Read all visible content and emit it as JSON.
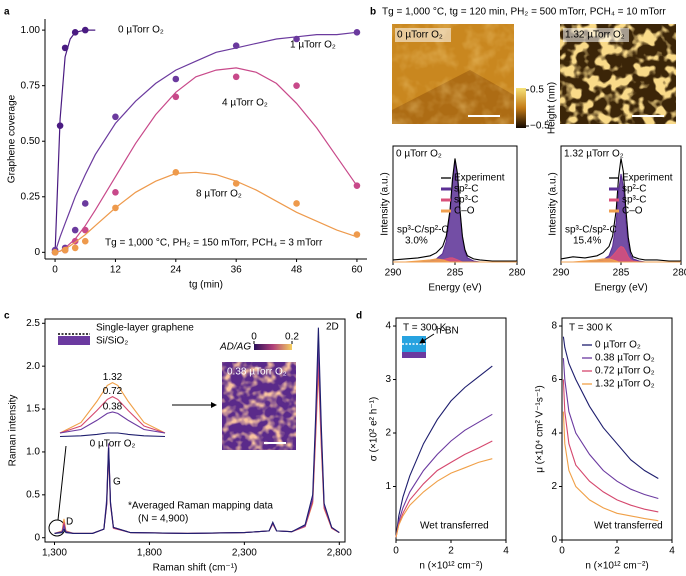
{
  "figure": {
    "panel_labels": [
      "a",
      "b",
      "c",
      "d"
    ],
    "b_conditions": "Tg = 1,000 °C, tg = 120 min, PH₂ = 500 mTorr, PCH₄ = 10 mTorr",
    "afm_labels": [
      "0 µTorr O₂",
      "1.32 µTorr O₂"
    ],
    "afm_colorbar": {
      "label": "Height (nm)",
      "ticks": [
        0.5,
        {
          "value": -0.5,
          "label": "−0.5"
        }
      ]
    },
    "schematic_labels": [
      "Single-layer graphene",
      "Si/SiO₂"
    ],
    "raman_note": [
      "*Averaged Raman mapping data",
      "(N = 4,900)"
    ],
    "raman_map": {
      "label": "0.38 µTorr O₂",
      "colorbar_title": "AD/AG",
      "colorbar_ticks": [
        0,
        0.2
      ]
    }
  },
  "chart_data": [
    {
      "type": "scatter",
      "xlabel": "tg (min)",
      "ylabel": "Graphene coverage",
      "annotation": "Tg = 1,000 °C, PH₂ = 150 mTorr, PCH₄ = 3 mTorr",
      "xlim": [
        -2,
        62
      ],
      "ylim": [
        -0.03,
        1.05
      ],
      "xticks": [
        0,
        12,
        24,
        36,
        48,
        60
      ],
      "yticks": [
        0,
        0.25,
        {
          "value": 0.5,
          "label": "0.50"
        },
        0.75,
        {
          "value": 1,
          "label": "1.00"
        }
      ],
      "fit_x": [
        0,
        1,
        2,
        3,
        4,
        6,
        8,
        12,
        16,
        20,
        24,
        28,
        32,
        36,
        40,
        44,
        48,
        52,
        56,
        60
      ],
      "series": [
        {
          "name": "0 µTorr O₂",
          "color": "#4a1b82",
          "x": [
            0,
            1,
            2,
            4,
            6
          ],
          "values": [
            0,
            0.57,
            0.92,
            0.99,
            1.0
          ],
          "fit": [
            0,
            0.6,
            0.88,
            0.96,
            0.99,
            1.0,
            1.0,
            null,
            null,
            null,
            null,
            null,
            null,
            null,
            null,
            null,
            null,
            null,
            null,
            null
          ]
        },
        {
          "name": "1 µTorr O₂",
          "color": "#6b3a9e",
          "x": [
            0,
            2,
            4,
            6,
            12,
            24,
            36,
            48,
            60
          ],
          "values": [
            0.01,
            0.02,
            0.1,
            0.22,
            0.61,
            0.78,
            0.93,
            0.96,
            0.99
          ],
          "fit": [
            0,
            0.07,
            0.13,
            0.19,
            0.25,
            0.35,
            0.44,
            0.58,
            0.68,
            0.76,
            0.82,
            0.86,
            0.9,
            0.92,
            0.94,
            0.96,
            0.97,
            0.98,
            0.98,
            0.99
          ]
        },
        {
          "name": "4 µTorr O₂",
          "color": "#c8498a",
          "x": [
            0,
            2,
            4,
            6,
            12,
            24,
            36,
            48,
            60
          ],
          "values": [
            0,
            0.01,
            0.05,
            0.1,
            0.27,
            0.7,
            0.79,
            0.75,
            0.3
          ],
          "fit": [
            0,
            0.005,
            0.02,
            0.04,
            0.06,
            0.12,
            0.19,
            0.34,
            0.49,
            0.62,
            0.72,
            0.79,
            0.82,
            0.83,
            0.81,
            0.76,
            0.67,
            0.56,
            0.43,
            0.3
          ]
        },
        {
          "name": "8 µTorr O₂",
          "color": "#ee9a4c",
          "x": [
            0,
            2,
            4,
            6,
            12,
            24,
            36,
            48,
            60
          ],
          "values": [
            0,
            0.01,
            0.02,
            0.05,
            0.2,
            0.36,
            0.31,
            0.22,
            0.08
          ],
          "fit": [
            0,
            0.005,
            0.015,
            0.03,
            0.045,
            0.08,
            0.12,
            0.2,
            0.27,
            0.32,
            0.355,
            0.36,
            0.35,
            0.32,
            0.28,
            0.23,
            0.18,
            0.14,
            0.1,
            0.07
          ]
        }
      ]
    },
    {
      "type": "line",
      "title": "0 µTorr O₂",
      "xlabel": "Energy (eV)",
      "ylabel": "Intensity (a.u.)",
      "annotation": [
        "sp³-C/sp²-C",
        "3.0%"
      ],
      "xlim": [
        290,
        280
      ],
      "ylim": [
        0,
        1.12
      ],
      "xticks": [
        290,
        285,
        280
      ],
      "x": [
        290,
        289,
        288,
        287,
        286.5,
        286,
        285.7,
        285.4,
        285.2,
        285,
        284.8,
        284.6,
        284.4,
        284.2,
        284,
        283.5,
        283,
        282,
        281,
        280
      ],
      "series": [
        {
          "name": "Experiment",
          "color": "#000000",
          "values": [
            0.02,
            0.03,
            0.04,
            0.06,
            0.09,
            0.15,
            0.25,
            0.5,
            0.8,
            1.0,
            0.85,
            0.5,
            0.25,
            0.12,
            0.06,
            0.03,
            0.02,
            0.01,
            0.01,
            0.01
          ]
        },
        {
          "name": "sp²-C",
          "color": "#5b2f95",
          "fill": true,
          "values": [
            0,
            0,
            0,
            0.01,
            0.03,
            0.08,
            0.2,
            0.46,
            0.77,
            0.98,
            0.84,
            0.48,
            0.23,
            0.1,
            0.04,
            0.01,
            0,
            0,
            0,
            0
          ]
        },
        {
          "name": "sp³-C",
          "color": "#d9507a",
          "fill": true,
          "values": [
            0,
            0,
            0,
            0,
            0.01,
            0.02,
            0.03,
            0.04,
            0.04,
            0.03,
            0.02,
            0.01,
            0,
            0,
            0,
            0,
            0,
            0,
            0,
            0
          ]
        },
        {
          "name": "C–O",
          "color": "#f0a050",
          "fill": true,
          "values": [
            0,
            0,
            0.01,
            0.02,
            0.03,
            0.02,
            0.01,
            0,
            0,
            0,
            0,
            0,
            0,
            0,
            0,
            0,
            0,
            0,
            0,
            0
          ]
        }
      ]
    },
    {
      "type": "line",
      "title": "1.32 µTorr O₂",
      "xlabel": "Energy (eV)",
      "ylabel": "Intensity (a.u.)",
      "annotation": [
        "sp³-C/sp²-C",
        "15.4%"
      ],
      "xlim": [
        290,
        280
      ],
      "ylim": [
        0,
        1.12
      ],
      "xticks": [
        290,
        285,
        280
      ],
      "x": [
        290,
        289,
        288,
        287,
        286.5,
        286,
        285.7,
        285.4,
        285.2,
        285,
        284.8,
        284.6,
        284.4,
        284.2,
        284,
        283.5,
        283,
        282,
        281,
        280
      ],
      "series": [
        {
          "name": "Experiment",
          "color": "#000000",
          "values": [
            0.03,
            0.05,
            0.04,
            0.06,
            0.09,
            0.15,
            0.25,
            0.5,
            0.82,
            1.0,
            0.87,
            0.52,
            0.24,
            0.1,
            0.05,
            0.03,
            0.02,
            0.02,
            0.01,
            0.01
          ]
        },
        {
          "name": "sp²-C",
          "color": "#5b2f95",
          "fill": true,
          "values": [
            0,
            0,
            0,
            0.01,
            0.02,
            0.06,
            0.15,
            0.38,
            0.68,
            0.85,
            0.72,
            0.4,
            0.18,
            0.07,
            0.03,
            0.01,
            0,
            0,
            0,
            0
          ]
        },
        {
          "name": "sp³-C",
          "color": "#d9507a",
          "fill": true,
          "values": [
            0,
            0,
            0,
            0,
            0.01,
            0.03,
            0.06,
            0.1,
            0.13,
            0.15,
            0.14,
            0.1,
            0.05,
            0.02,
            0.01,
            0,
            0,
            0,
            0,
            0
          ]
        },
        {
          "name": "C–O",
          "color": "#f0a050",
          "fill": true,
          "values": [
            0,
            0,
            0.01,
            0.02,
            0.03,
            0.03,
            0.02,
            0.01,
            0,
            0,
            0,
            0,
            0,
            0,
            0,
            0,
            0,
            0,
            0,
            0
          ]
        }
      ]
    },
    {
      "type": "line",
      "xlabel": "Raman shift (cm⁻¹)",
      "ylabel": "Raman intensity",
      "peak_labels": [
        "D",
        "G",
        "2D"
      ],
      "xlim": [
        1250,
        2830
      ],
      "ylim": [
        -0.05,
        2.55
      ],
      "xticks": [
        {
          "value": 1300,
          "label": "1,300"
        },
        {
          "value": 1800,
          "label": "1,800"
        },
        {
          "value": 2300,
          "label": "2,300"
        },
        {
          "value": 2800,
          "label": "2,800"
        }
      ],
      "yticks": [
        0,
        0.5,
        {
          "value": 1,
          "label": "1.0"
        },
        1.5,
        {
          "value": 2,
          "label": "2.0"
        },
        2.5
      ],
      "x": [
        1300,
        1340,
        1350,
        1360,
        1400,
        1500,
        1560,
        1575,
        1585,
        1595,
        1610,
        1700,
        2000,
        2300,
        2430,
        2450,
        2470,
        2550,
        2620,
        2660,
        2675,
        2690,
        2705,
        2720,
        2760,
        2800
      ],
      "series": [
        {
          "color": "#1e1e6e",
          "values": [
            0.05,
            0.06,
            0.1,
            0.06,
            0.05,
            0.05,
            0.1,
            0.4,
            1.05,
            0.4,
            0.12,
            0.06,
            0.05,
            0.06,
            0.08,
            0.18,
            0.08,
            0.07,
            0.15,
            0.5,
            1.4,
            2.45,
            1.3,
            0.4,
            0.12,
            0.06
          ]
        },
        {
          "color": "#6b3aa0",
          "values": [
            0.05,
            0.07,
            0.14,
            0.07,
            0.05,
            0.05,
            0.1,
            0.45,
            1.1,
            0.42,
            0.12,
            0.06,
            0.05,
            0.06,
            0.08,
            0.17,
            0.08,
            0.07,
            0.14,
            0.45,
            1.3,
            2.25,
            1.2,
            0.38,
            0.12,
            0.06
          ]
        },
        {
          "color": "#d5486e",
          "values": [
            0.05,
            0.07,
            0.18,
            0.07,
            0.05,
            0.05,
            0.1,
            0.38,
            1.0,
            0.38,
            0.11,
            0.06,
            0.05,
            0.06,
            0.08,
            0.16,
            0.08,
            0.07,
            0.13,
            0.42,
            1.2,
            2.05,
            1.1,
            0.35,
            0.11,
            0.06
          ]
        },
        {
          "color": "#f0a048",
          "values": [
            0.05,
            0.08,
            0.22,
            0.08,
            0.05,
            0.05,
            0.1,
            0.4,
            1.05,
            0.4,
            0.12,
            0.06,
            0.05,
            0.06,
            0.08,
            0.16,
            0.08,
            0.07,
            0.13,
            0.4,
            1.15,
            1.95,
            1.05,
            0.34,
            0.11,
            0.06
          ]
        }
      ]
    },
    {
      "type": "line",
      "xlim": [
        1300,
        1400
      ],
      "ylim": [
        0,
        1
      ],
      "x": [
        1300,
        1320,
        1335,
        1345,
        1350,
        1355,
        1365,
        1380,
        1400
      ],
      "series": [
        {
          "name": "1.32",
          "color": "#f0a048",
          "values": [
            0.1,
            0.25,
            0.55,
            0.78,
            0.82,
            0.78,
            0.55,
            0.25,
            0.1
          ]
        },
        {
          "name": "0.72",
          "color": "#d5486e",
          "values": [
            0.1,
            0.2,
            0.42,
            0.58,
            0.62,
            0.58,
            0.42,
            0.2,
            0.1
          ]
        },
        {
          "name": "0.38",
          "color": "#6b3aa0",
          "values": [
            0.1,
            0.15,
            0.28,
            0.38,
            0.4,
            0.38,
            0.28,
            0.15,
            0.1
          ]
        },
        {
          "name": "0 µTorr O₂",
          "color": "#1e1e6e",
          "values": [
            0.05,
            0.06,
            0.08,
            0.1,
            0.1,
            0.1,
            0.08,
            0.06,
            0.05
          ]
        }
      ]
    },
    {
      "type": "line",
      "xlabel": "n (×10¹² cm⁻²)",
      "ylabel": "σ (×10² e² h⁻¹)",
      "annotations": [
        "T = 300 K",
        "h-BN",
        "Wet transferred"
      ],
      "xlim": [
        0,
        4
      ],
      "ylim": [
        0,
        4.15
      ],
      "xticks": [
        0,
        2,
        4
      ],
      "yticks": [
        1,
        2,
        3,
        4
      ],
      "x": [
        0,
        0.1,
        0.25,
        0.5,
        1,
        1.5,
        2,
        2.5,
        3,
        3.5
      ],
      "series": [
        {
          "color": "#1e1e6e",
          "values": [
            0.05,
            0.45,
            0.8,
            1.2,
            1.8,
            2.25,
            2.6,
            2.85,
            3.05,
            3.25
          ]
        },
        {
          "color": "#6b3aa0",
          "values": [
            0.05,
            0.35,
            0.6,
            0.9,
            1.3,
            1.6,
            1.85,
            2.05,
            2.2,
            2.35
          ]
        },
        {
          "color": "#d5486e",
          "values": [
            0.05,
            0.3,
            0.5,
            0.75,
            1.05,
            1.3,
            1.45,
            1.6,
            1.72,
            1.85
          ]
        },
        {
          "color": "#f0a048",
          "values": [
            0.05,
            0.28,
            0.45,
            0.65,
            0.9,
            1.1,
            1.25,
            1.35,
            1.45,
            1.52
          ]
        }
      ]
    },
    {
      "type": "line",
      "xlabel": "n (×10¹² cm⁻²)",
      "ylabel": "μ (×10⁴ cm² V⁻¹s⁻¹)",
      "annotations": [
        "T = 300 K",
        "Wet transferred"
      ],
      "xlim": [
        0,
        4
      ],
      "ylim": [
        0,
        8.3
      ],
      "xticks": [
        0,
        2,
        4
      ],
      "yticks": [
        0,
        2,
        4,
        6,
        8
      ],
      "x": [
        0.05,
        0.1,
        0.25,
        0.5,
        1,
        1.5,
        2,
        2.5,
        3,
        3.5
      ],
      "series": [
        {
          "name": "0 µTorr O₂",
          "color": "#1e1e6e",
          "values": [
            7.6,
            7.2,
            6.6,
            6.0,
            5.0,
            4.2,
            3.6,
            3.0,
            2.6,
            2.3
          ]
        },
        {
          "name": "0.38 µTorr O₂",
          "color": "#6b3aa0",
          "values": [
            6.8,
            6.0,
            4.8,
            4.0,
            3.2,
            2.6,
            2.2,
            1.9,
            1.7,
            1.55
          ]
        },
        {
          "name": "0.72 µTorr O₂",
          "color": "#d5486e",
          "values": [
            6.0,
            4.8,
            3.6,
            2.8,
            2.2,
            1.8,
            1.5,
            1.3,
            1.15,
            1.05
          ]
        },
        {
          "name": "1.32 µTorr O₂",
          "color": "#f0a048",
          "values": [
            4.8,
            3.6,
            2.6,
            2.0,
            1.5,
            1.2,
            1.0,
            0.9,
            0.8,
            0.72
          ]
        }
      ]
    }
  ]
}
